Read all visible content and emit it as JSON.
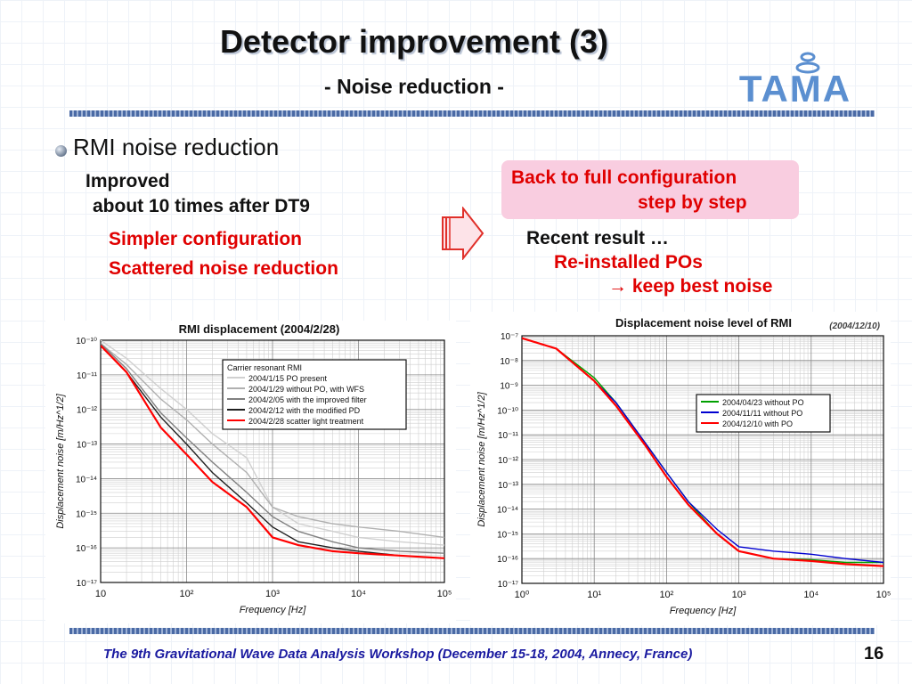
{
  "slide": {
    "title": "Detector improvement (3)",
    "subtitle": "- Noise reduction -",
    "bullet": "RMI noise reduction",
    "left_lines": [
      "Improved",
      "about 10 times after DT9"
    ],
    "left_red_lines": [
      "Simpler configuration",
      "Scattered noise reduction"
    ],
    "box_lines": [
      "Back to full configuration",
      "step by step"
    ],
    "recent_label": "Recent result …",
    "recent_red_lines": [
      "Re-installed POs",
      "keep best noise"
    ],
    "footer": "The 9th Gravitational Wave Data Analysis Workshop  (December 15-18, 2004, Annecy, France)",
    "page_number": "16",
    "logo_text": "TAMA",
    "colors": {
      "accent_red": "#e00000",
      "box_pink": "#f9cde0",
      "footer_blue": "#1a1aa0"
    }
  },
  "chart_data": [
    {
      "type": "line",
      "title": "RMI displacement (2004/2/28)",
      "xlabel": "Frequency [Hz]",
      "ylabel": "Displacement noise [m/Hz^1/2]",
      "xscale": "log",
      "yscale": "log",
      "xlim": [
        10,
        100000
      ],
      "ylim": [
        1e-17,
        1e-10
      ],
      "x_ticks": [
        "10",
        "10²",
        "10³",
        "10⁴",
        "10⁵"
      ],
      "x_tick_values": [
        10,
        100,
        1000,
        10000,
        100000
      ],
      "y_ticks": [
        "10⁻¹⁰",
        "10⁻¹¹",
        "10⁻¹²",
        "10⁻¹³",
        "10⁻¹⁴",
        "10⁻¹⁵",
        "10⁻¹⁶",
        "10⁻¹⁷"
      ],
      "y_tick_values": [
        1e-10,
        1e-11,
        1e-12,
        1e-13,
        1e-14,
        1e-15,
        1e-16,
        1e-17
      ],
      "legend_title": "Carrier resonant RMI",
      "legend_position": "top-right",
      "grid": true,
      "series": [
        {
          "name": "2004/1/15 PO present",
          "color": "#d0d0d0",
          "x": [
            10,
            20,
            50,
            100,
            200,
            500,
            1000,
            2000,
            5000,
            10000,
            30000,
            100000
          ],
          "y": [
            1e-10,
            3e-11,
            4e-12,
            1e-12,
            2e-13,
            4e-14,
            1.5e-15,
            5e-16,
            3e-16,
            2e-16,
            1.5e-16,
            1.2e-16
          ]
        },
        {
          "name": "2004/1/29 without PO, with WFS",
          "color": "#b0b0b0",
          "x": [
            10,
            20,
            50,
            100,
            200,
            500,
            1000,
            2000,
            5000,
            10000,
            30000,
            100000
          ],
          "y": [
            8e-11,
            2e-11,
            2e-12,
            5e-13,
            1e-13,
            1.5e-14,
            1.5e-15,
            8e-16,
            5e-16,
            4e-16,
            3e-16,
            2e-16
          ]
        },
        {
          "name": "2004/2/05 with the improved filter",
          "color": "#808080",
          "x": [
            10,
            20,
            50,
            100,
            200,
            500,
            1000,
            2000,
            5000,
            10000,
            30000,
            100000
          ],
          "y": [
            8e-11,
            1.5e-11,
            8e-13,
            1.5e-13,
            3e-14,
            4e-15,
            8e-16,
            3e-16,
            1.5e-16,
            1e-16,
            8e-17,
            7e-17
          ]
        },
        {
          "name": "2004/2/12 with the modified PD",
          "color": "#202020",
          "x": [
            10,
            20,
            50,
            100,
            200,
            500,
            1000,
            2000,
            5000,
            10000,
            30000,
            100000
          ],
          "y": [
            7e-11,
            1.2e-11,
            6e-13,
            1e-13,
            1.5e-14,
            2e-15,
            4e-16,
            1.5e-16,
            1e-16,
            8e-17,
            6e-17,
            5e-17
          ]
        },
        {
          "name": "2004/2/28 scatter light treatment",
          "color": "#ff0000",
          "x": [
            10,
            20,
            50,
            100,
            200,
            500,
            1000,
            2000,
            5000,
            10000,
            30000,
            100000
          ],
          "y": [
            7e-11,
            1.2e-11,
            3e-13,
            5e-14,
            8e-15,
            1.5e-15,
            2e-16,
            1.2e-16,
            8e-17,
            7e-17,
            6e-17,
            5e-17
          ]
        }
      ]
    },
    {
      "type": "line",
      "title": "Displacement noise level of RMI",
      "date_note": "(2004/12/10)",
      "xlabel": "Frequency [Hz]",
      "ylabel": "Displacement noise [m/Hz^1/2]",
      "xscale": "log",
      "yscale": "log",
      "xlim": [
        1,
        100000
      ],
      "ylim": [
        1e-17,
        1e-07
      ],
      "x_ticks": [
        "10⁰",
        "10¹",
        "10²",
        "10³",
        "10⁴",
        "10⁵"
      ],
      "x_tick_values": [
        1,
        10,
        100,
        1000,
        10000,
        100000
      ],
      "y_ticks": [
        "10⁻⁷",
        "10⁻⁸",
        "10⁻⁹",
        "10⁻¹⁰",
        "10⁻¹¹",
        "10⁻¹²",
        "10⁻¹³",
        "10⁻¹⁴",
        "10⁻¹⁵",
        "10⁻¹⁶",
        "10⁻¹⁷"
      ],
      "y_tick_values": [
        1e-07,
        1e-08,
        1e-09,
        1e-10,
        1e-11,
        1e-12,
        1e-13,
        1e-14,
        1e-15,
        1e-16,
        1e-17
      ],
      "legend_position": "right",
      "grid": true,
      "series": [
        {
          "name": "2004/04/23 without PO",
          "color": "#00a000",
          "x": [
            1,
            3,
            10,
            20,
            50,
            100,
            200,
            500,
            1000,
            3000,
            10000,
            30000,
            100000
          ],
          "y": [
            8e-08,
            3e-08,
            2e-09,
            2e-10,
            5e-12,
            3e-13,
            2e-14,
            1e-15,
            2e-16,
            1e-16,
            9e-17,
            7e-17,
            7e-17
          ]
        },
        {
          "name": "2004/11/11 without PO",
          "color": "#0000d0",
          "x": [
            1,
            3,
            10,
            20,
            50,
            100,
            200,
            500,
            1000,
            3000,
            10000,
            30000,
            100000
          ],
          "y": [
            8e-08,
            3e-08,
            1.5e-09,
            2e-10,
            5e-12,
            3e-13,
            2e-14,
            1.5e-15,
            3e-16,
            2e-16,
            1.5e-16,
            1e-16,
            7e-17
          ]
        },
        {
          "name": "2004/12/10 with PO",
          "color": "#ff0000",
          "x": [
            1,
            3,
            10,
            20,
            50,
            100,
            200,
            500,
            1000,
            3000,
            10000,
            30000,
            100000
          ],
          "y": [
            8e-08,
            3e-08,
            1.5e-09,
            1.5e-10,
            4e-12,
            2e-13,
            1.5e-14,
            1e-15,
            2e-16,
            1e-16,
            8e-17,
            6e-17,
            5e-17
          ]
        }
      ]
    }
  ]
}
